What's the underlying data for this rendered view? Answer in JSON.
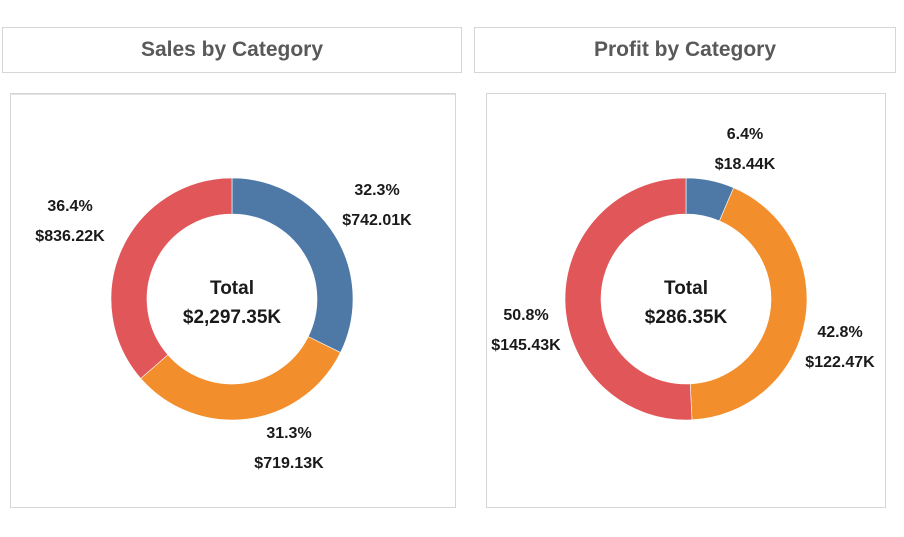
{
  "colors": {
    "blue": "#4e79a7",
    "orange": "#f28e2b",
    "red": "#e15759"
  },
  "chart_data": [
    {
      "type": "pie",
      "title": "Sales by Category",
      "center_label": "Total",
      "center_value": "$2,297.35K",
      "slices": [
        {
          "value": 742.01,
          "percent_label": "32.3%",
          "value_label": "$742.01K",
          "color": "#4e79a7"
        },
        {
          "value": 719.13,
          "percent_label": "31.3%",
          "value_label": "$719.13K",
          "color": "#f28e2b"
        },
        {
          "value": 836.22,
          "percent_label": "36.4%",
          "value_label": "$836.22K",
          "color": "#e15759"
        }
      ]
    },
    {
      "type": "pie",
      "title": "Profit by Category",
      "center_label": "Total",
      "center_value": "$286.35K",
      "slices": [
        {
          "value": 18.44,
          "percent_label": "6.4%",
          "value_label": "$18.44K",
          "color": "#4e79a7"
        },
        {
          "value": 122.47,
          "percent_label": "42.8%",
          "value_label": "$122.47K",
          "color": "#f28e2b"
        },
        {
          "value": 145.43,
          "percent_label": "50.8%",
          "value_label": "$145.43K",
          "color": "#e15759"
        }
      ]
    }
  ]
}
